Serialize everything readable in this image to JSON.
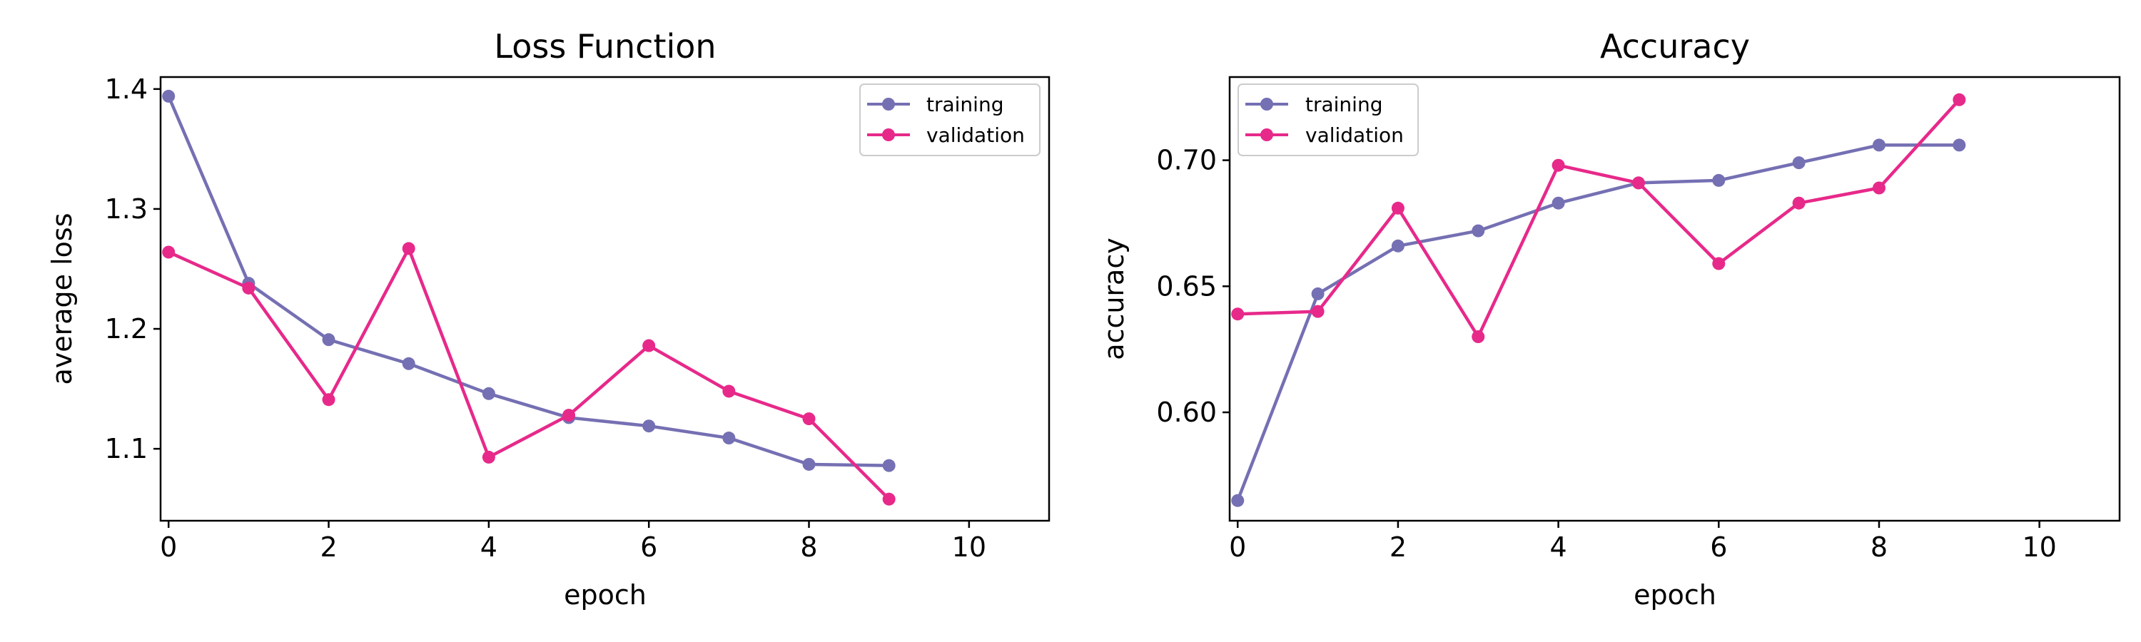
{
  "colors": {
    "training": "#7570b3",
    "validation": "#e7298a"
  },
  "chart_data": [
    {
      "type": "line",
      "title": "Loss Function",
      "xlabel": "epoch",
      "ylabel": "average loss",
      "xlim": [
        -0.1,
        11.0
      ],
      "ylim": [
        1.04,
        1.41
      ],
      "xticks": [
        0,
        2,
        4,
        6,
        8,
        10
      ],
      "xtick_labels": [
        "0",
        "2",
        "4",
        "6",
        "8",
        "10"
      ],
      "yticks": [
        1.1,
        1.2,
        1.3,
        1.4
      ],
      "ytick_labels": [
        "1.1",
        "1.2",
        "1.3",
        "1.4"
      ],
      "grid": false,
      "legend_position": "upper right",
      "x": [
        0,
        1,
        2,
        3,
        4,
        5,
        6,
        7,
        8,
        9
      ],
      "series": [
        {
          "name": "training",
          "values": [
            1.394,
            1.238,
            1.191,
            1.171,
            1.146,
            1.126,
            1.119,
            1.109,
            1.087,
            1.086
          ]
        },
        {
          "name": "validation",
          "values": [
            1.264,
            1.234,
            1.141,
            1.267,
            1.093,
            1.128,
            1.186,
            1.148,
            1.125,
            1.058
          ]
        }
      ]
    },
    {
      "type": "line",
      "title": "Accuracy",
      "xlabel": "epoch",
      "ylabel": "accuracy",
      "xlim": [
        -0.1,
        11.0
      ],
      "ylim": [
        0.557,
        0.733
      ],
      "xticks": [
        0,
        2,
        4,
        6,
        8,
        10
      ],
      "xtick_labels": [
        "0",
        "2",
        "4",
        "6",
        "8",
        "10"
      ],
      "yticks": [
        0.6,
        0.65,
        0.7
      ],
      "ytick_labels": [
        "0.60",
        "0.65",
        "0.70"
      ],
      "grid": false,
      "legend_position": "upper left",
      "x": [
        0,
        1,
        2,
        3,
        4,
        5,
        6,
        7,
        8,
        9
      ],
      "series": [
        {
          "name": "training",
          "values": [
            0.565,
            0.647,
            0.666,
            0.672,
            0.683,
            0.691,
            0.692,
            0.699,
            0.706,
            0.706
          ]
        },
        {
          "name": "validation",
          "values": [
            0.639,
            0.64,
            0.681,
            0.63,
            0.698,
            0.691,
            0.659,
            0.683,
            0.689,
            0.724
          ]
        }
      ]
    }
  ]
}
